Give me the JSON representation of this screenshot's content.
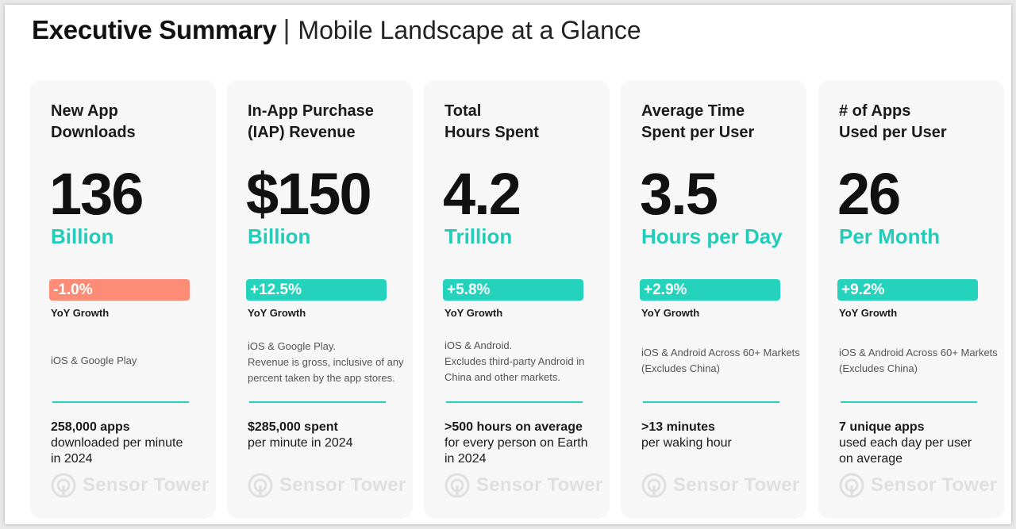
{
  "header": {
    "title_bold": "Executive Summary",
    "separator": "|",
    "title_light": "Mobile Landscape at a Glance"
  },
  "colors": {
    "accent": "#25d3bd",
    "negative": "#fc8c75",
    "card_bg": "#f7f7f7"
  },
  "watermark": {
    "brand": "Sensor Tower",
    "icon": "sensor-tower-logo-icon"
  },
  "cards": [
    {
      "title": "New App\nDownloads",
      "value": "136",
      "unit": "Billion",
      "growth": "-1.0%",
      "growth_direction": "negative",
      "growth_label": "YoY Growth",
      "note": "iOS & Google Play",
      "stat_bold": "258,000 apps",
      "stat_rest": "downloaded per minute\nin 2024"
    },
    {
      "title": "In-App Purchase\n(IAP) Revenue",
      "value": "$150",
      "unit": "Billion",
      "growth": "+12.5%",
      "growth_direction": "positive",
      "growth_label": "YoY Growth",
      "note": "iOS & Google Play.\nRevenue is gross, inclusive of any percent taken by the app stores.",
      "stat_bold": "$285,000 spent",
      "stat_rest": "per minute in 2024"
    },
    {
      "title": "Total\nHours Spent",
      "value": "4.2",
      "unit": "Trillion",
      "growth": "+5.8%",
      "growth_direction": "positive",
      "growth_label": "YoY Growth",
      "note": "iOS & Android.\nExcludes third-party Android in China and other markets.",
      "stat_bold": ">500 hours on average",
      "stat_rest": "for every person on Earth\nin 2024"
    },
    {
      "title": "Average Time\nSpent per User",
      "value": "3.5",
      "unit": "Hours per Day",
      "growth": "+2.9%",
      "growth_direction": "positive",
      "growth_label": "YoY Growth",
      "note": "iOS & Android Across 60+ Markets (Excludes China)",
      "stat_bold": ">13 minutes",
      "stat_rest": "per waking hour"
    },
    {
      "title": "# of Apps\nUsed per User",
      "value": "26",
      "unit": "Per Month",
      "growth": "+9.2%",
      "growth_direction": "positive",
      "growth_label": "YoY Growth",
      "note": "iOS & Android Across 60+ Markets (Excludes China)",
      "stat_bold": "7 unique apps",
      "stat_rest": "used each day per user\non average"
    }
  ]
}
